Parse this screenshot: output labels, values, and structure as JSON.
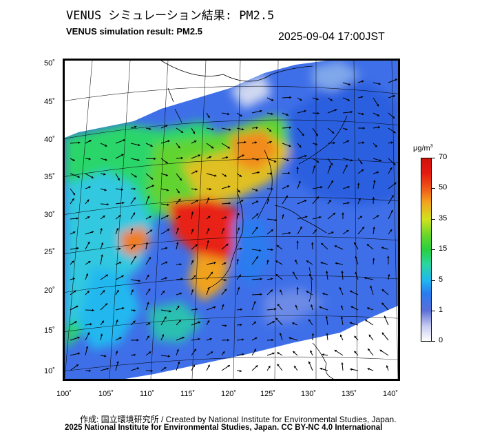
{
  "title_jp": "VENUS シミュレーション結果: PM2.5",
  "title_en": "VENUS simulation result: PM2.5",
  "timestamp": "2025-09-04 17:00JST",
  "map": {
    "lat_labels": [
      "50˚",
      "45˚",
      "40˚",
      "35˚",
      "30˚",
      "25˚",
      "20˚",
      "15˚",
      "10˚"
    ],
    "lon_labels": [
      "100˚",
      "105˚",
      "110˚",
      "115˚",
      "120˚",
      "125˚",
      "130˚",
      "135˚",
      "140˚"
    ]
  },
  "colorbar": {
    "unit": "μg/m",
    "unit_sup": "3",
    "ticks": [
      "70",
      "50",
      "35",
      "15",
      "5",
      "1",
      "0"
    ],
    "colors": [
      "#ffffff",
      "#5a6fd8",
      "#20b8ef",
      "#27d040",
      "#d2e21e",
      "#f05a18",
      "#d0120c"
    ]
  },
  "credit": {
    "line1": "作成: 国立環境研究所 / Created by National Institute for Environmental Studies, Japan.",
    "line2": "2025 National Institute for Environmental Studies, Japan. CC BY-NC 4.0 International"
  }
}
